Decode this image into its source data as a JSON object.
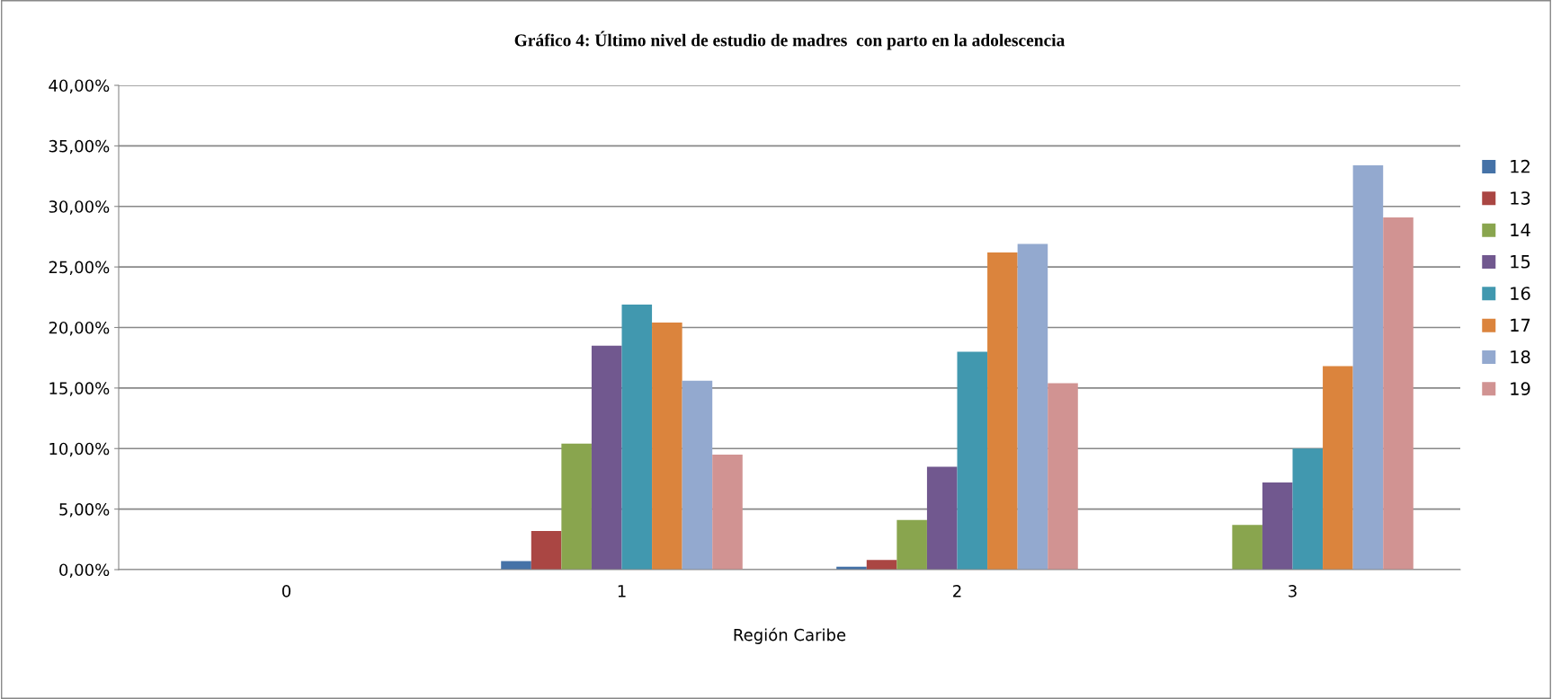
{
  "chart_data": {
    "type": "bar",
    "title": "Gráfico 4: Último nivel de estudio de madres  con parto en la adolescencia",
    "xlabel": "Región Caribe",
    "categories": [
      "0",
      "1",
      "2",
      "3"
    ],
    "series": [
      {
        "name": "12",
        "color": "#4572a7",
        "values": [
          0,
          0.7,
          0.25,
          0
        ]
      },
      {
        "name": "13",
        "color": "#aa4643",
        "values": [
          0,
          3.2,
          0.8,
          0
        ]
      },
      {
        "name": "14",
        "color": "#89a54e",
        "values": [
          0,
          10.4,
          4.1,
          3.7
        ]
      },
      {
        "name": "15",
        "color": "#71588f",
        "values": [
          0,
          18.5,
          8.5,
          7.2
        ]
      },
      {
        "name": "16",
        "color": "#4198af",
        "values": [
          0,
          21.9,
          18.0,
          10.0
        ]
      },
      {
        "name": "17",
        "color": "#db843d",
        "values": [
          0,
          20.4,
          26.2,
          16.8
        ]
      },
      {
        "name": "18",
        "color": "#93a9cf",
        "values": [
          0,
          15.6,
          26.9,
          33.4
        ]
      },
      {
        "name": "19",
        "color": "#d19392",
        "values": [
          0,
          9.5,
          15.4,
          29.1
        ]
      }
    ],
    "ylim": [
      0,
      40
    ],
    "yticks": [
      {
        "value": 0,
        "label": "0,00%"
      },
      {
        "value": 5,
        "label": "5,00%"
      },
      {
        "value": 10,
        "label": "10,00%"
      },
      {
        "value": 15,
        "label": "15,00%"
      },
      {
        "value": 20,
        "label": "20,00%"
      },
      {
        "value": 25,
        "label": "25,00%"
      },
      {
        "value": 30,
        "label": "30,00%"
      },
      {
        "value": 35,
        "label": "35,00%"
      },
      {
        "value": 40,
        "label": "40,00%"
      }
    ],
    "grid": "y",
    "legend": "right"
  }
}
